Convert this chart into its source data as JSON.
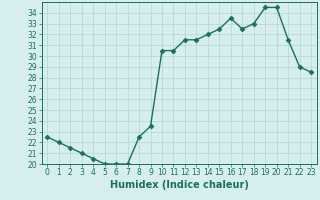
{
  "x": [
    0,
    1,
    2,
    3,
    4,
    5,
    6,
    7,
    8,
    9,
    10,
    11,
    12,
    13,
    14,
    15,
    16,
    17,
    18,
    19,
    20,
    21,
    22,
    23
  ],
  "y": [
    22.5,
    22.0,
    21.5,
    21.0,
    20.5,
    20.0,
    20.0,
    20.0,
    22.5,
    23.5,
    30.5,
    30.5,
    31.5,
    31.5,
    32.0,
    32.5,
    33.5,
    32.5,
    33.0,
    34.5,
    34.5,
    31.5,
    29.0,
    28.5
  ],
  "line_color": "#1a7060",
  "marker": "D",
  "markersize": 2.5,
  "linewidth": 1.0,
  "xlabel": "Humidex (Indice chaleur)",
  "ylim": [
    20,
    35
  ],
  "xlim": [
    -0.5,
    23.5
  ],
  "yticks": [
    20,
    21,
    22,
    23,
    24,
    25,
    26,
    27,
    28,
    29,
    30,
    31,
    32,
    33,
    34
  ],
  "xticks": [
    0,
    1,
    2,
    3,
    4,
    5,
    6,
    7,
    8,
    9,
    10,
    11,
    12,
    13,
    14,
    15,
    16,
    17,
    18,
    19,
    20,
    21,
    22,
    23
  ],
  "bg_color": "#d6efee",
  "grid_color": "#b0d8d5",
  "tick_color": "#1a7060",
  "label_fontsize": 7,
  "tick_fontsize": 5.5
}
